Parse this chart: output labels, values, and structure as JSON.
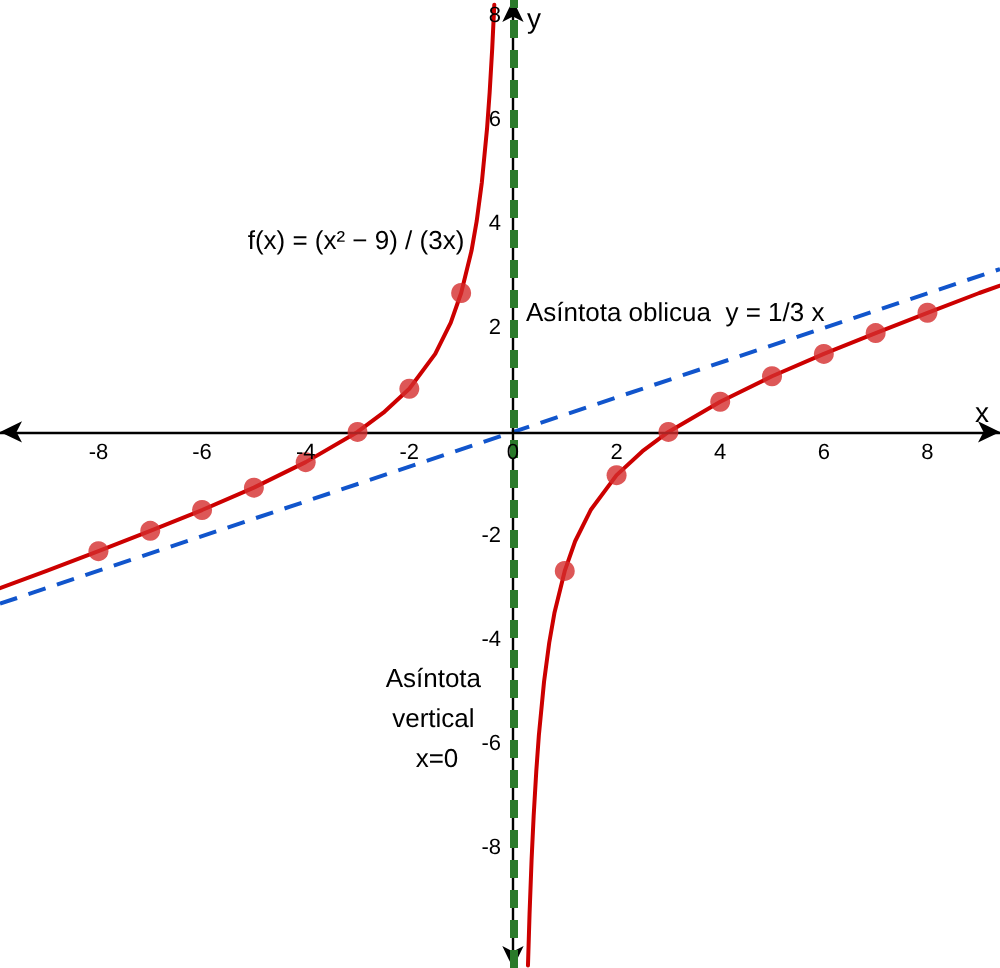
{
  "chart_data": {
    "type": "line",
    "xlabel": "x",
    "ylabel": "y",
    "annotations": [
      "f(x) = (x² − 9) / (3x)",
      "Asíntota oblicua  y = 1/3 x"
    ],
    "series": [
      {
        "color": "#cc0000",
        "marker": "none",
        "line_style": "solid",
        "x": [
          -9.9,
          -9,
          -8,
          -7,
          -6,
          -5,
          -4,
          -3,
          -2.5,
          -2,
          -1.5,
          -1.2,
          -1,
          -0.8,
          -0.7,
          -0.6,
          -0.5,
          -0.45,
          -0.4,
          -0.36
        ],
        "values": [
          -3.0,
          -2.67,
          -2.29,
          -1.9,
          -1.5,
          -1.07,
          -0.58,
          0,
          0.37,
          0.83,
          1.5,
          2.1,
          2.67,
          3.48,
          4.05,
          4.8,
          5.83,
          6.52,
          7.37,
          8.21
        ]
      },
      {
        "color": "#cc0000",
        "marker": "none",
        "line_style": "solid",
        "x": [
          0.29,
          0.32,
          0.36,
          0.4,
          0.45,
          0.5,
          0.6,
          0.7,
          0.8,
          1,
          1.2,
          1.5,
          2,
          2.5,
          3,
          4,
          5,
          6,
          7,
          8,
          9,
          9.4
        ],
        "values": [
          -10.25,
          -9.27,
          -8.21,
          -7.37,
          -6.52,
          -5.83,
          -4.8,
          -4.05,
          -3.48,
          -2.67,
          -2.1,
          -1.5,
          -0.83,
          -0.37,
          0,
          0.58,
          1.07,
          1.5,
          1.9,
          2.29,
          2.67,
          2.81
        ]
      },
      {
        "type": "scatter",
        "color": "#d42d2d",
        "marker": "circle",
        "x": [
          -8,
          -7,
          -6,
          -5,
          -4,
          -3,
          -2,
          -1,
          1,
          2,
          3,
          4,
          5,
          6,
          7,
          8
        ],
        "values": [
          -2.29,
          -1.9,
          -1.5,
          -1.07,
          -0.58,
          0,
          0.83,
          2.67,
          -2.67,
          -0.83,
          0,
          0.58,
          1.07,
          1.5,
          1.9,
          2.29
        ]
      },
      {
        "color": "#1155cc",
        "marker": "none",
        "line_style": "dashed",
        "x": [
          -9.9,
          9.4
        ],
        "values": [
          -3.3,
          3.13
        ]
      }
    ],
    "ref_lines": [
      {
        "axis": "x",
        "value": 0,
        "label": "Asíntota vertical x=0",
        "color": "#2a7a2a",
        "line_style": "dashed"
      }
    ],
    "xlim": [
      -9.9,
      9.4
    ],
    "ylim": [
      -10.3,
      8.3
    ],
    "xticks": [
      -8,
      -6,
      -4,
      -2,
      0,
      2,
      4,
      6,
      8
    ],
    "yticks": [
      -8,
      -6,
      -4,
      -2,
      2,
      4,
      6,
      8
    ],
    "grid": false
  }
}
